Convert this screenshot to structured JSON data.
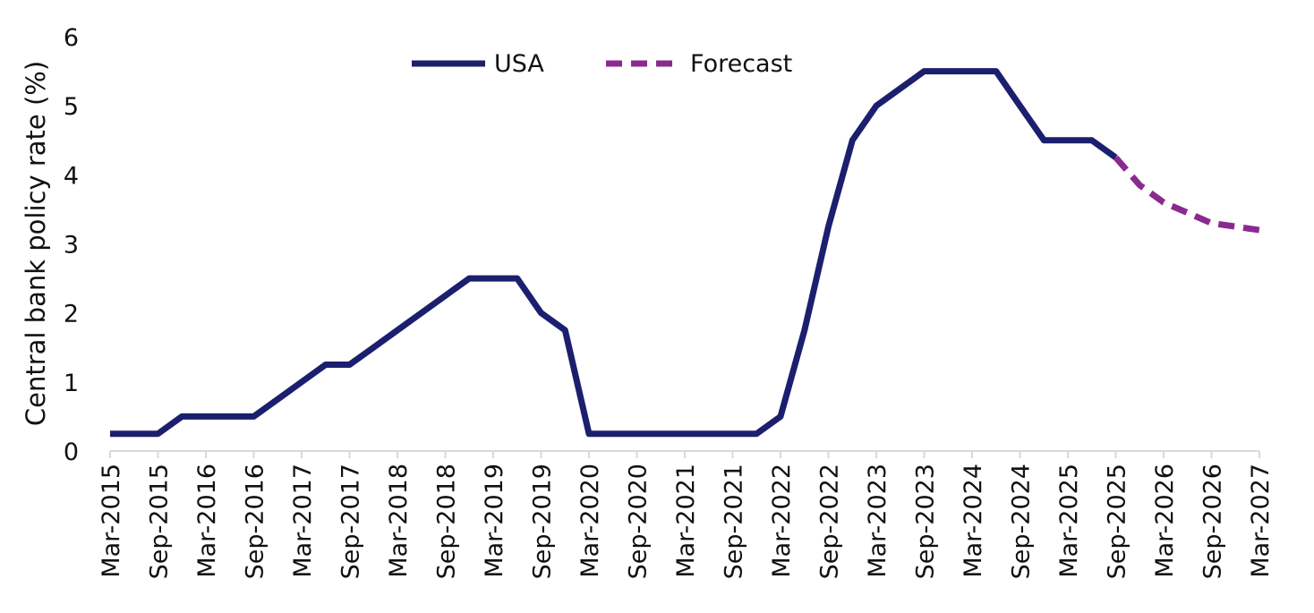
{
  "chart_data": {
    "type": "line",
    "title": "",
    "xlabel": "",
    "ylabel": "Central bank policy rate (%)",
    "ylim": [
      0,
      6
    ],
    "yticks": [
      0,
      1,
      2,
      3,
      4,
      5,
      6
    ],
    "grid": false,
    "legend_position": "top-center",
    "x_tick_labels": [
      "Mar-2015",
      "Sep-2015",
      "Mar-2016",
      "Sep-2016",
      "Mar-2017",
      "Sep-2017",
      "Mar-2018",
      "Sep-2018",
      "Mar-2019",
      "Sep-2019",
      "Mar-2020",
      "Sep-2020",
      "Mar-2021",
      "Sep-2021",
      "Mar-2022",
      "Sep-2022",
      "Mar-2023",
      "Sep-2023",
      "Mar-2024",
      "Sep-2024",
      "Mar-2025",
      "Sep-2025",
      "Mar-2026",
      "Sep-2026",
      "Mar-2027"
    ],
    "series": [
      {
        "name": "USA",
        "color": "#1b1f6e",
        "style": "solid",
        "points": [
          [
            "Mar-2015",
            0.25
          ],
          [
            "Jun-2015",
            0.25
          ],
          [
            "Sep-2015",
            0.25
          ],
          [
            "Dec-2015",
            0.5
          ],
          [
            "Mar-2016",
            0.5
          ],
          [
            "Jun-2016",
            0.5
          ],
          [
            "Sep-2016",
            0.5
          ],
          [
            "Dec-2016",
            0.75
          ],
          [
            "Mar-2017",
            1.0
          ],
          [
            "Jun-2017",
            1.25
          ],
          [
            "Sep-2017",
            1.25
          ],
          [
            "Dec-2017",
            1.5
          ],
          [
            "Mar-2018",
            1.75
          ],
          [
            "Jun-2018",
            2.0
          ],
          [
            "Sep-2018",
            2.25
          ],
          [
            "Dec-2018",
            2.5
          ],
          [
            "Mar-2019",
            2.5
          ],
          [
            "Jun-2019",
            2.5
          ],
          [
            "Sep-2019",
            2.0
          ],
          [
            "Dec-2019",
            1.75
          ],
          [
            "Mar-2020",
            0.25
          ],
          [
            "Jun-2020",
            0.25
          ],
          [
            "Sep-2020",
            0.25
          ],
          [
            "Dec-2020",
            0.25
          ],
          [
            "Mar-2021",
            0.25
          ],
          [
            "Jun-2021",
            0.25
          ],
          [
            "Sep-2021",
            0.25
          ],
          [
            "Dec-2021",
            0.25
          ],
          [
            "Mar-2022",
            0.5
          ],
          [
            "Jun-2022",
            1.75
          ],
          [
            "Sep-2022",
            3.25
          ],
          [
            "Dec-2022",
            4.5
          ],
          [
            "Mar-2023",
            5.0
          ],
          [
            "Jun-2023",
            5.25
          ],
          [
            "Sep-2023",
            5.5
          ],
          [
            "Dec-2023",
            5.5
          ],
          [
            "Mar-2024",
            5.5
          ],
          [
            "Jun-2024",
            5.5
          ],
          [
            "Sep-2024",
            5.0
          ],
          [
            "Dec-2024",
            4.5
          ],
          [
            "Mar-2025",
            4.5
          ],
          [
            "Jun-2025",
            4.5
          ],
          [
            "Sep-2025",
            4.25
          ]
        ]
      },
      {
        "name": "Forecast",
        "color": "#8b2a8e",
        "style": "dashed",
        "points": [
          [
            "Sep-2025",
            4.25
          ],
          [
            "Dec-2025",
            3.85
          ],
          [
            "Mar-2026",
            3.6
          ],
          [
            "Jun-2026",
            3.45
          ],
          [
            "Sep-2026",
            3.3
          ],
          [
            "Dec-2026",
            3.25
          ],
          [
            "Mar-2027",
            3.2
          ]
        ]
      }
    ]
  }
}
